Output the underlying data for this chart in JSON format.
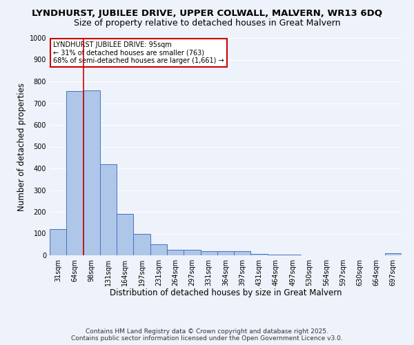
{
  "title1": "LYNDHURST, JUBILEE DRIVE, UPPER COLWALL, MALVERN, WR13 6DQ",
  "title2": "Size of property relative to detached houses in Great Malvern",
  "xlabel": "Distribution of detached houses by size in Great Malvern",
  "ylabel": "Number of detached properties",
  "categories": [
    "31sqm",
    "64sqm",
    "98sqm",
    "131sqm",
    "164sqm",
    "197sqm",
    "231sqm",
    "264sqm",
    "297sqm",
    "331sqm",
    "364sqm",
    "397sqm",
    "431sqm",
    "464sqm",
    "497sqm",
    "530sqm",
    "564sqm",
    "597sqm",
    "630sqm",
    "664sqm",
    "697sqm"
  ],
  "values": [
    120,
    755,
    760,
    420,
    190,
    100,
    50,
    25,
    25,
    18,
    20,
    20,
    7,
    4,
    3,
    0,
    0,
    0,
    0,
    0,
    8
  ],
  "bar_color": "#aec6e8",
  "bar_edge_color": "#4472c4",
  "vline_x_idx": 2,
  "vline_color": "#cc0000",
  "annotation_text": "LYNDHURST JUBILEE DRIVE: 95sqm\n← 31% of detached houses are smaller (763)\n68% of semi-detached houses are larger (1,661) →",
  "annotation_box_color": "#ffffff",
  "annotation_box_edge": "#cc0000",
  "ylim": [
    0,
    1000
  ],
  "yticks": [
    0,
    100,
    200,
    300,
    400,
    500,
    600,
    700,
    800,
    900,
    1000
  ],
  "footnote": "Contains HM Land Registry data © Crown copyright and database right 2025.\nContains public sector information licensed under the Open Government Licence v3.0.",
  "bg_color": "#eef2fa",
  "grid_color": "#ffffff",
  "title1_fontsize": 9.5,
  "title2_fontsize": 9,
  "xlabel_fontsize": 8.5,
  "ylabel_fontsize": 8.5,
  "tick_fontsize": 7,
  "footnote_fontsize": 6.5,
  "annotation_fontsize": 7
}
